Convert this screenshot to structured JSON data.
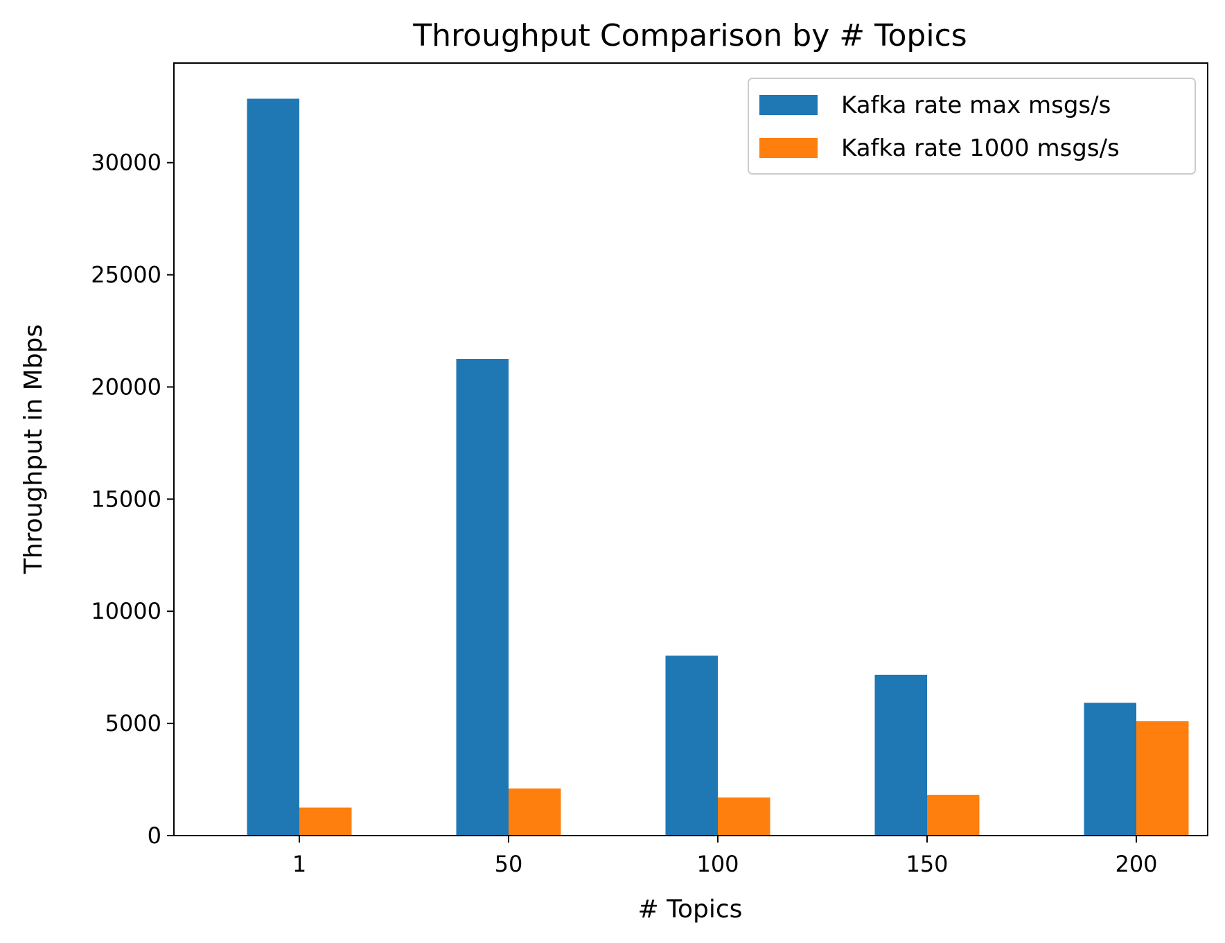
{
  "chart_data": {
    "type": "bar",
    "title": "Throughput Comparison by # Topics",
    "xlabel": "# Topics",
    "ylabel": "Throughput in Mbps",
    "categories": [
      "1",
      "50",
      "100",
      "150",
      "200"
    ],
    "series": [
      {
        "name": "Kafka rate max msgs/s",
        "color": "#1f77b4",
        "values": [
          32850,
          21250,
          8020,
          7170,
          5920
        ]
      },
      {
        "name": "Kafka rate 1000 msgs/s",
        "color": "#ff7f0e",
        "values": [
          1250,
          2100,
          1700,
          1820,
          5100
        ]
      }
    ],
    "ylim": [
      0,
      34440
    ],
    "yticks": [
      0,
      5000,
      10000,
      15000,
      20000,
      25000,
      30000
    ],
    "grid": false,
    "legend": "top-right"
  }
}
